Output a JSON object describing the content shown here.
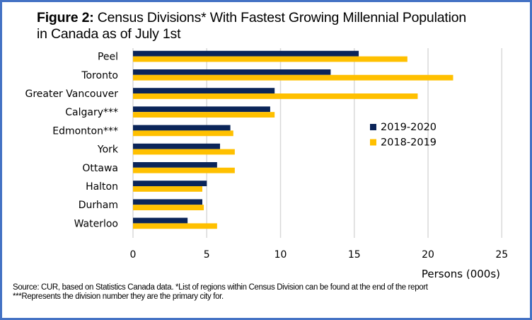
{
  "figure": {
    "title_bold": "Figure 2:",
    "title_rest": " Census Divisions* With Fastest Growing Millennial  Population",
    "title_line2": "in Canada as of July 1st",
    "source_line1": "Source: CUR, based on Statistics Canada data. *List of regions within Census Division can be found at the end of the report",
    "source_line2": "***Represents the division number they are the primary city for."
  },
  "colors": {
    "series_2019_2020": "#0B2559",
    "series_2018_2019": "#FFC000",
    "gridline": "#D9D9D9",
    "border": "#4472C4"
  },
  "chart_data": {
    "type": "bar",
    "orientation": "horizontal",
    "title": "Figure 2: Census Divisions* With Fastest Growing Millennial Population in Canada as of July 1st",
    "categories": [
      "Peel",
      "Toronto",
      "Greater Vancouver",
      "Calgary***",
      "Edmonton***",
      "York",
      "Ottawa",
      "Halton",
      "Durham",
      "Waterloo"
    ],
    "series": [
      {
        "name": "2019-2020",
        "color": "#0B2559",
        "values": [
          15.3,
          13.4,
          9.6,
          9.3,
          6.6,
          5.9,
          5.7,
          5.0,
          4.7,
          3.7
        ]
      },
      {
        "name": "2018-2019",
        "color": "#FFC000",
        "values": [
          18.6,
          21.7,
          19.3,
          9.6,
          6.8,
          6.9,
          6.9,
          4.7,
          4.8,
          5.7
        ]
      }
    ],
    "xlabel": "Persons (000s)",
    "ylabel": "",
    "xlim": [
      0,
      25
    ],
    "xticks": [
      "0",
      "5",
      "10",
      "15",
      "20",
      "25"
    ],
    "grid": "vertical",
    "legend": [
      "2019-2020",
      "2018-2019"
    ],
    "legend_position": "right-middle"
  }
}
